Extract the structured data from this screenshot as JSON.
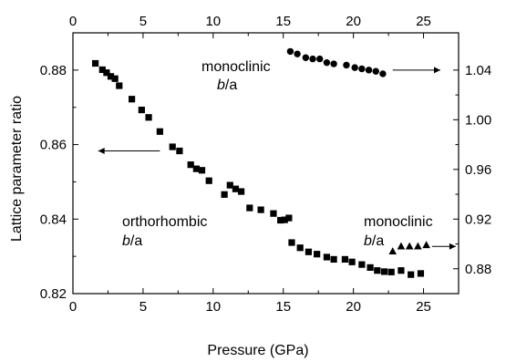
{
  "chart_data": {
    "type": "scatter",
    "xlabel": "Pressure (GPa)",
    "ylabel": "Lattice parameter ratio",
    "xlim": [
      0,
      27.5
    ],
    "ylim_left": [
      0.82,
      0.89
    ],
    "ylim_right": [
      0.86,
      1.07
    ],
    "x_ticks": [
      0,
      5,
      10,
      15,
      20,
      25
    ],
    "x_tick_labels": [
      "0",
      "5",
      "10",
      "15",
      "20",
      "25"
    ],
    "y_left_ticks": [
      0.82,
      0.84,
      0.86,
      0.88
    ],
    "y_left_tick_labels": [
      "0.82",
      "0.84",
      "0.86",
      "0.88"
    ],
    "y_right_ticks": [
      0.88,
      0.92,
      0.96,
      1.0,
      1.04
    ],
    "y_right_tick_labels": [
      "0.88",
      "0.92",
      "0.96",
      "1.00",
      "1.04"
    ],
    "grid": false,
    "series": [
      {
        "marker": "square",
        "axis": "left",
        "points": [
          [
            1.6,
            0.8818
          ],
          [
            2.1,
            0.8801
          ],
          [
            2.4,
            0.8793
          ],
          [
            2.7,
            0.8783
          ],
          [
            3.0,
            0.8777
          ],
          [
            3.3,
            0.8758
          ],
          [
            4.2,
            0.8722
          ],
          [
            4.9,
            0.8693
          ],
          [
            5.4,
            0.8673
          ],
          [
            6.2,
            0.8635
          ],
          [
            7.1,
            0.8594
          ],
          [
            7.6,
            0.8583
          ],
          [
            8.4,
            0.8546
          ],
          [
            8.8,
            0.8535
          ],
          [
            9.2,
            0.8531
          ],
          [
            9.7,
            0.8503
          ],
          [
            10.8,
            0.8466
          ],
          [
            11.2,
            0.8491
          ],
          [
            11.6,
            0.8481
          ],
          [
            12.0,
            0.8474
          ],
          [
            12.6,
            0.843
          ],
          [
            13.4,
            0.8425
          ],
          [
            14.3,
            0.8415
          ],
          [
            14.8,
            0.8397
          ],
          [
            15.1,
            0.8398
          ],
          [
            15.4,
            0.8403
          ],
          [
            15.6,
            0.8337
          ],
          [
            16.2,
            0.8323
          ],
          [
            16.8,
            0.8312
          ],
          [
            17.4,
            0.8306
          ],
          [
            18.1,
            0.8298
          ],
          [
            18.6,
            0.8292
          ],
          [
            19.4,
            0.8292
          ],
          [
            19.9,
            0.8285
          ],
          [
            20.6,
            0.8278
          ],
          [
            21.2,
            0.827
          ],
          [
            21.7,
            0.8262
          ],
          [
            22.2,
            0.8259
          ],
          [
            22.7,
            0.8258
          ],
          [
            23.4,
            0.8262
          ],
          [
            24.1,
            0.8251
          ],
          [
            24.8,
            0.8254
          ]
        ]
      },
      {
        "marker": "circle",
        "axis": "right",
        "points": [
          [
            15.5,
            1.055
          ],
          [
            16.0,
            1.053
          ],
          [
            16.6,
            1.05
          ],
          [
            17.1,
            1.049
          ],
          [
            17.6,
            1.049
          ],
          [
            18.1,
            1.046
          ],
          [
            18.6,
            1.045
          ],
          [
            19.5,
            1.044
          ],
          [
            20.1,
            1.042
          ],
          [
            20.6,
            1.041
          ],
          [
            21.1,
            1.04
          ],
          [
            21.6,
            1.039
          ],
          [
            22.1,
            1.037
          ]
        ]
      },
      {
        "marker": "triangle",
        "axis": "right",
        "points": [
          [
            22.8,
            0.894
          ],
          [
            23.4,
            0.898
          ],
          [
            24.0,
            0.898
          ],
          [
            24.6,
            0.898
          ],
          [
            25.2,
            0.899
          ]
        ]
      }
    ],
    "annotations": [
      {
        "id": "mono-top",
        "line1": "monoclinic",
        "line2_italic": "b",
        "line2_rest": "/a"
      },
      {
        "id": "ortho",
        "line1": "orthorhombic",
        "line2_italic": "b",
        "line2_rest": "/a"
      },
      {
        "id": "mono-bottom",
        "line1": "monoclinic",
        "line2_italic": "b",
        "line2_rest": "/a"
      }
    ]
  }
}
